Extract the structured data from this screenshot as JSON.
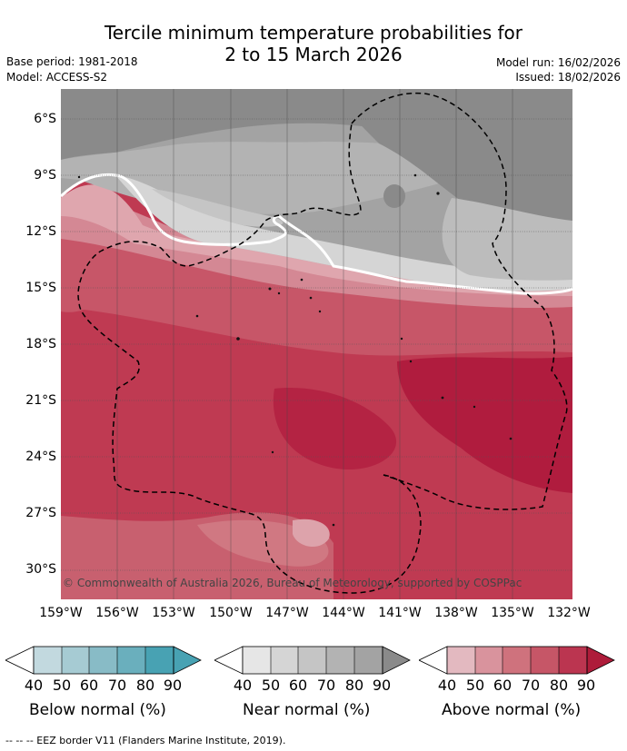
{
  "title_line1": "Tercile minimum temperature probabilities for",
  "title_line2": "2 to 15 March 2026",
  "base_period": "Base period: 1981-2018",
  "model": "Model: ACCESS-S2",
  "model_run": "Model run: 16/02/2026",
  "issued": "Issued: 18/02/2026",
  "copyright": "© Commonwealth of Australia 2026, Bureau of Meteorology, supported by COSPPac",
  "lat_ticks": [
    "6°S",
    "9°S",
    "12°S",
    "15°S",
    "18°S",
    "21°S",
    "24°S",
    "27°S",
    "30°S"
  ],
  "lon_ticks": [
    "159°W",
    "156°W",
    "153°W",
    "150°W",
    "147°W",
    "144°W",
    "141°W",
    "138°W",
    "135°W",
    "132°W"
  ],
  "colorbars": [
    {
      "label": "Below normal (%)",
      "ticks": [
        "40",
        "50",
        "60",
        "70",
        "80",
        "90"
      ],
      "colors": [
        "#ffffff",
        "#c2d9df",
        "#a6cbd3",
        "#88bbc6",
        "#6aafbd",
        "#48a2b3"
      ]
    },
    {
      "label": "Near normal (%)",
      "ticks": [
        "40",
        "50",
        "60",
        "70",
        "80",
        "90"
      ],
      "colors": [
        "#ffffff",
        "#e6e6e6",
        "#d5d5d5",
        "#c5c5c5",
        "#b3b3b3",
        "#a3a3a3",
        "#8a8a8a"
      ]
    },
    {
      "label": "Above normal (%)",
      "ticks": [
        "40",
        "50",
        "60",
        "70",
        "80",
        "90"
      ],
      "colors": [
        "#ffffff",
        "#e3b9c0",
        "#d9939d",
        "#cf727d",
        "#c65667",
        "#bb3550",
        "#ae1c3a"
      ]
    }
  ],
  "footer": "-- -- -- EEZ border V11 (Flanders Marine Institute, 2019)."
}
